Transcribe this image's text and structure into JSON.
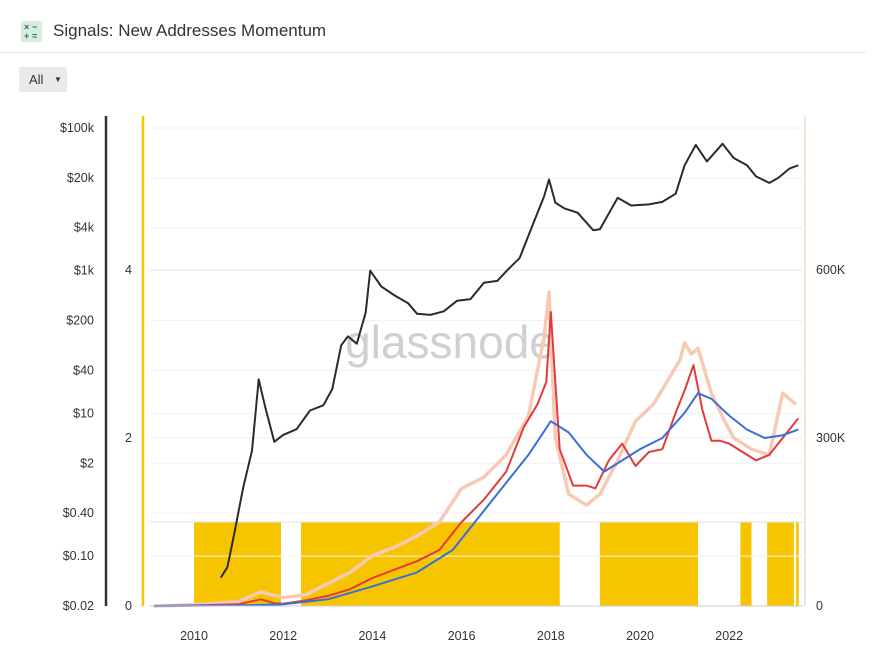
{
  "header": {
    "title": "Signals: New Addresses Momentum",
    "icon": "calculator-icon"
  },
  "range_selector": {
    "selected": "All"
  },
  "chart_data": {
    "type": "line",
    "watermark": "glassnode",
    "title": "",
    "x_ticks": [
      "2010",
      "2012",
      "2014",
      "2016",
      "2018",
      "2020",
      "2022"
    ],
    "price_axis": {
      "scale": "log",
      "ticks": [
        "$0.02",
        "$0.10",
        "$0.40",
        "$2",
        "$10",
        "$40",
        "$200",
        "$1k",
        "$4k",
        "$20k",
        "$100k"
      ],
      "tick_values": [
        0.02,
        0.1,
        0.4,
        2,
        10,
        40,
        200,
        1000,
        4000,
        20000,
        100000
      ]
    },
    "signal_axis": {
      "ticks": [
        "0",
        "2",
        "4"
      ],
      "tick_values": [
        0,
        2,
        4
      ]
    },
    "addresses_axis": {
      "ticks": [
        "0",
        "300K",
        "600K"
      ],
      "tick_values": [
        0,
        300000,
        600000
      ]
    },
    "colors": {
      "price": "#2b2b2b",
      "new_addresses_raw": "#f8c9b3",
      "new_addresses_short": "#e23b3b",
      "new_addresses_long": "#3a6fd8",
      "signal": "#f7c500",
      "axis_left": "#333333"
    },
    "series": [
      {
        "key": "price",
        "x": [
          2010.6,
          2010.75,
          2010.9,
          2011.1,
          2011.3,
          2011.45,
          2011.6,
          2011.8,
          2012.0,
          2012.3,
          2012.6,
          2012.9,
          2013.1,
          2013.3,
          2013.45,
          2013.65,
          2013.85,
          2013.95,
          2014.2,
          2014.5,
          2014.8,
          2015.0,
          2015.3,
          2015.6,
          2015.9,
          2016.2,
          2016.5,
          2016.8,
          2017.0,
          2017.3,
          2017.6,
          2017.85,
          2017.96,
          2018.1,
          2018.3,
          2018.6,
          2018.95,
          2019.1,
          2019.5,
          2019.8,
          2020.2,
          2020.5,
          2020.8,
          2021.0,
          2021.25,
          2021.5,
          2021.85,
          2022.1,
          2022.4,
          2022.6,
          2022.9,
          2023.1,
          2023.35,
          2023.55
        ],
        "y": [
          0.05,
          0.07,
          0.2,
          0.9,
          3.0,
          30,
          12,
          4.0,
          5.0,
          6.0,
          11,
          13,
          22,
          90,
          120,
          95,
          260,
          1000,
          600,
          450,
          350,
          250,
          240,
          270,
          380,
          400,
          680,
          720,
          980,
          1500,
          4500,
          11000,
          19000,
          9000,
          7500,
          6500,
          3700,
          3800,
          10500,
          8200,
          8500,
          9200,
          12000,
          30000,
          58000,
          34000,
          60000,
          38000,
          30000,
          21000,
          17000,
          20000,
          27000,
          30000
        ]
      },
      {
        "key": "new_addresses_raw",
        "x": [
          2009.1,
          2010.0,
          2011.0,
          2011.5,
          2012.0,
          2012.5,
          2013.0,
          2013.5,
          2014.0,
          2014.5,
          2015.0,
          2015.5,
          2016.0,
          2016.5,
          2017.0,
          2017.5,
          2017.85,
          2017.96,
          2018.1,
          2018.4,
          2018.8,
          2019.1,
          2019.5,
          2019.9,
          2020.3,
          2020.6,
          2020.9,
          2021.0,
          2021.15,
          2021.3,
          2021.6,
          2021.9,
          2022.1,
          2022.5,
          2022.9,
          2023.2,
          2023.5
        ],
        "y": [
          0,
          2000,
          8000,
          25000,
          15000,
          20000,
          40000,
          60000,
          90000,
          105000,
          125000,
          150000,
          210000,
          230000,
          270000,
          340000,
          480000,
          560000,
          300000,
          200000,
          180000,
          200000,
          260000,
          330000,
          360000,
          400000,
          440000,
          470000,
          450000,
          460000,
          380000,
          330000,
          300000,
          280000,
          270000,
          380000,
          360000
        ]
      },
      {
        "key": "new_addresses_short",
        "x": [
          2009.1,
          2010.0,
          2011.0,
          2011.5,
          2011.8,
          2012.0,
          2012.5,
          2013.0,
          2013.5,
          2014.0,
          2014.5,
          2015.0,
          2015.5,
          2016.0,
          2016.5,
          2017.0,
          2017.4,
          2017.7,
          2017.9,
          2018.0,
          2018.2,
          2018.5,
          2018.8,
          2019.0,
          2019.3,
          2019.6,
          2019.9,
          2020.2,
          2020.5,
          2020.8,
          2021.0,
          2021.2,
          2021.4,
          2021.6,
          2021.8,
          2022.0,
          2022.3,
          2022.6,
          2022.9,
          2023.2,
          2023.4,
          2023.55
        ],
        "y": [
          0,
          1000,
          3000,
          12000,
          5000,
          4000,
          10000,
          18000,
          30000,
          50000,
          65000,
          80000,
          100000,
          150000,
          190000,
          240000,
          320000,
          360000,
          400000,
          525000,
          280000,
          215000,
          215000,
          210000,
          260000,
          290000,
          250000,
          275000,
          280000,
          345000,
          385000,
          430000,
          350000,
          295000,
          295000,
          290000,
          275000,
          260000,
          270000,
          300000,
          320000,
          335000
        ]
      },
      {
        "key": "new_addresses_long",
        "x": [
          2009.1,
          2011.0,
          2012.0,
          2013.0,
          2014.0,
          2015.0,
          2015.8,
          2016.5,
          2017.0,
          2017.5,
          2018.0,
          2018.4,
          2018.8,
          2019.2,
          2019.6,
          2020.0,
          2020.5,
          2021.0,
          2021.3,
          2021.6,
          2022.0,
          2022.4,
          2022.8,
          2023.2,
          2023.55
        ],
        "y": [
          0,
          1000,
          3000,
          12000,
          35000,
          60000,
          100000,
          170000,
          220000,
          270000,
          330000,
          310000,
          270000,
          240000,
          260000,
          280000,
          300000,
          345000,
          380000,
          370000,
          340000,
          315000,
          300000,
          305000,
          315000
        ]
      }
    ],
    "signal_periods": [
      [
        2010.0,
        2011.95
      ],
      [
        2012.4,
        2018.2
      ],
      [
        2019.1,
        2021.3
      ],
      [
        2022.25,
        2022.5
      ],
      [
        2022.85,
        2023.45
      ],
      [
        2023.5,
        2023.56
      ]
    ]
  }
}
